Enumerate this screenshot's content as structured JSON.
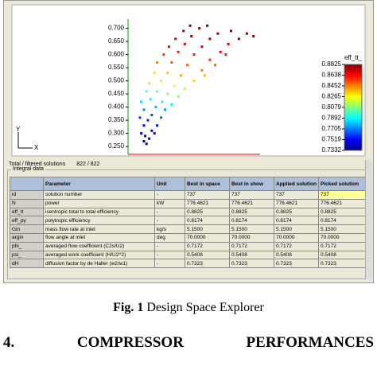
{
  "window": {
    "plot": {
      "type": "scatter",
      "xlim": [
        0,
        1
      ],
      "ylim": [
        0.22,
        0.72
      ],
      "yticks": [
        {
          "value": 0.25,
          "label": "0.250"
        },
        {
          "value": 0.3,
          "label": "0.300"
        },
        {
          "value": 0.35,
          "label": "0.350"
        },
        {
          "value": 0.4,
          "label": "0.400"
        },
        {
          "value": 0.45,
          "label": "0.450"
        },
        {
          "value": 0.5,
          "label": "0.500"
        },
        {
          "value": 0.55,
          "label": "0.550"
        },
        {
          "value": 0.6,
          "label": "0.600"
        },
        {
          "value": 0.65,
          "label": "0.650"
        },
        {
          "value": 0.7,
          "label": "0.700"
        }
      ],
      "x": [
        0.12,
        0.14,
        0.13,
        0.16,
        0.1,
        0.18,
        0.12,
        0.2,
        0.15,
        0.22,
        0.09,
        0.18,
        0.25,
        0.12,
        0.21,
        0.28,
        0.1,
        0.17,
        0.26,
        0.33,
        0.14,
        0.22,
        0.3,
        0.38,
        0.16,
        0.25,
        0.35,
        0.43,
        0.2,
        0.3,
        0.4,
        0.5,
        0.22,
        0.33,
        0.45,
        0.56,
        0.27,
        0.38,
        0.5,
        0.62,
        0.31,
        0.43,
        0.56,
        0.7,
        0.36,
        0.48,
        0.62,
        0.76,
        0.42,
        0.54,
        0.68,
        0.84,
        0.47,
        0.9,
        0.95,
        0.6,
        0.78,
        0.58,
        0.66,
        0.74
      ],
      "y": [
        0.27,
        0.26,
        0.29,
        0.28,
        0.3,
        0.31,
        0.33,
        0.3,
        0.35,
        0.33,
        0.36,
        0.37,
        0.36,
        0.39,
        0.4,
        0.39,
        0.42,
        0.43,
        0.42,
        0.41,
        0.46,
        0.46,
        0.45,
        0.44,
        0.49,
        0.5,
        0.48,
        0.47,
        0.53,
        0.53,
        0.52,
        0.5,
        0.57,
        0.57,
        0.56,
        0.54,
        0.6,
        0.61,
        0.6,
        0.58,
        0.63,
        0.64,
        0.63,
        0.61,
        0.66,
        0.67,
        0.66,
        0.64,
        0.69,
        0.7,
        0.68,
        0.66,
        0.71,
        0.68,
        0.67,
        0.71,
        0.69,
        0.52,
        0.56,
        0.6
      ],
      "eff": [
        0.735,
        0.737,
        0.742,
        0.74,
        0.745,
        0.748,
        0.752,
        0.746,
        0.757,
        0.755,
        0.76,
        0.763,
        0.768,
        0.772,
        0.778,
        0.776,
        0.785,
        0.79,
        0.792,
        0.788,
        0.8,
        0.805,
        0.81,
        0.806,
        0.815,
        0.82,
        0.825,
        0.818,
        0.83,
        0.835,
        0.84,
        0.832,
        0.845,
        0.85,
        0.852,
        0.846,
        0.855,
        0.86,
        0.862,
        0.858,
        0.865,
        0.868,
        0.87,
        0.866,
        0.872,
        0.875,
        0.876,
        0.873,
        0.878,
        0.88,
        0.879,
        0.877,
        0.881,
        0.88,
        0.879,
        0.882,
        0.881,
        0.838,
        0.85,
        0.862
      ],
      "colorbar": {
        "title": "eff_tt_",
        "clim": [
          0.7332,
          0.8825
        ],
        "ticks": [
          0.8825,
          0.8638,
          0.8452,
          0.8265,
          0.8079,
          0.7892,
          0.7705,
          0.7519,
          0.7332
        ]
      },
      "axis_labels": [
        "Y",
        "X"
      ]
    },
    "status": "Total / filtered solutions",
    "count": "822 / 822",
    "group": "Integral data",
    "table": {
      "columns": [
        "Parameter",
        "Unit",
        "Best in space",
        "Best in show",
        "Applied solution",
        "Picked solution"
      ],
      "rows": [
        [
          "id",
          "solution number",
          "-",
          "737",
          "737",
          "737",
          "737"
        ],
        [
          "N",
          "power",
          "kW",
          "776.4621",
          "776.4621",
          "776.4621",
          "776.4621"
        ],
        [
          "eff_tt",
          "isentropic total to total efficiency",
          "-",
          "0.8825",
          "0.8825",
          "0.8825",
          "0.8825"
        ],
        [
          "eff_py",
          "polytropic efficiency",
          "-",
          "0.8174",
          "0.8174",
          "0.8174",
          "0.8174"
        ],
        [
          "Gin",
          "mass flow rate at inlet",
          "kg/s",
          "5.1500",
          "5.1500",
          "5.1500",
          "5.1500"
        ],
        [
          "argin",
          "flow angle at inlet",
          "deg",
          "70.0000",
          "70.0000",
          "70.0000",
          "70.0000"
        ],
        [
          "phi_",
          "averaged flow coefficient (C2s/U2)",
          "-",
          "0.7172",
          "0.7172",
          "0.7172",
          "0.7172"
        ],
        [
          "psi_",
          "averaged work coefficient (H/U2^2)",
          "-",
          "0.5408",
          "0.5408",
          "0.5408",
          "0.5408"
        ],
        [
          "dH",
          "diffusion factor by de Haller (w2/w1)",
          "-",
          "0.7323",
          "0.7323",
          "0.7323",
          "0.7323"
        ]
      ]
    }
  },
  "caption": {
    "label": "Fig. 1",
    "text": "Design Space Explorer"
  },
  "heading": {
    "number": "4.",
    "words": [
      "COMPRESSOR",
      "PERFORMANCES"
    ]
  }
}
